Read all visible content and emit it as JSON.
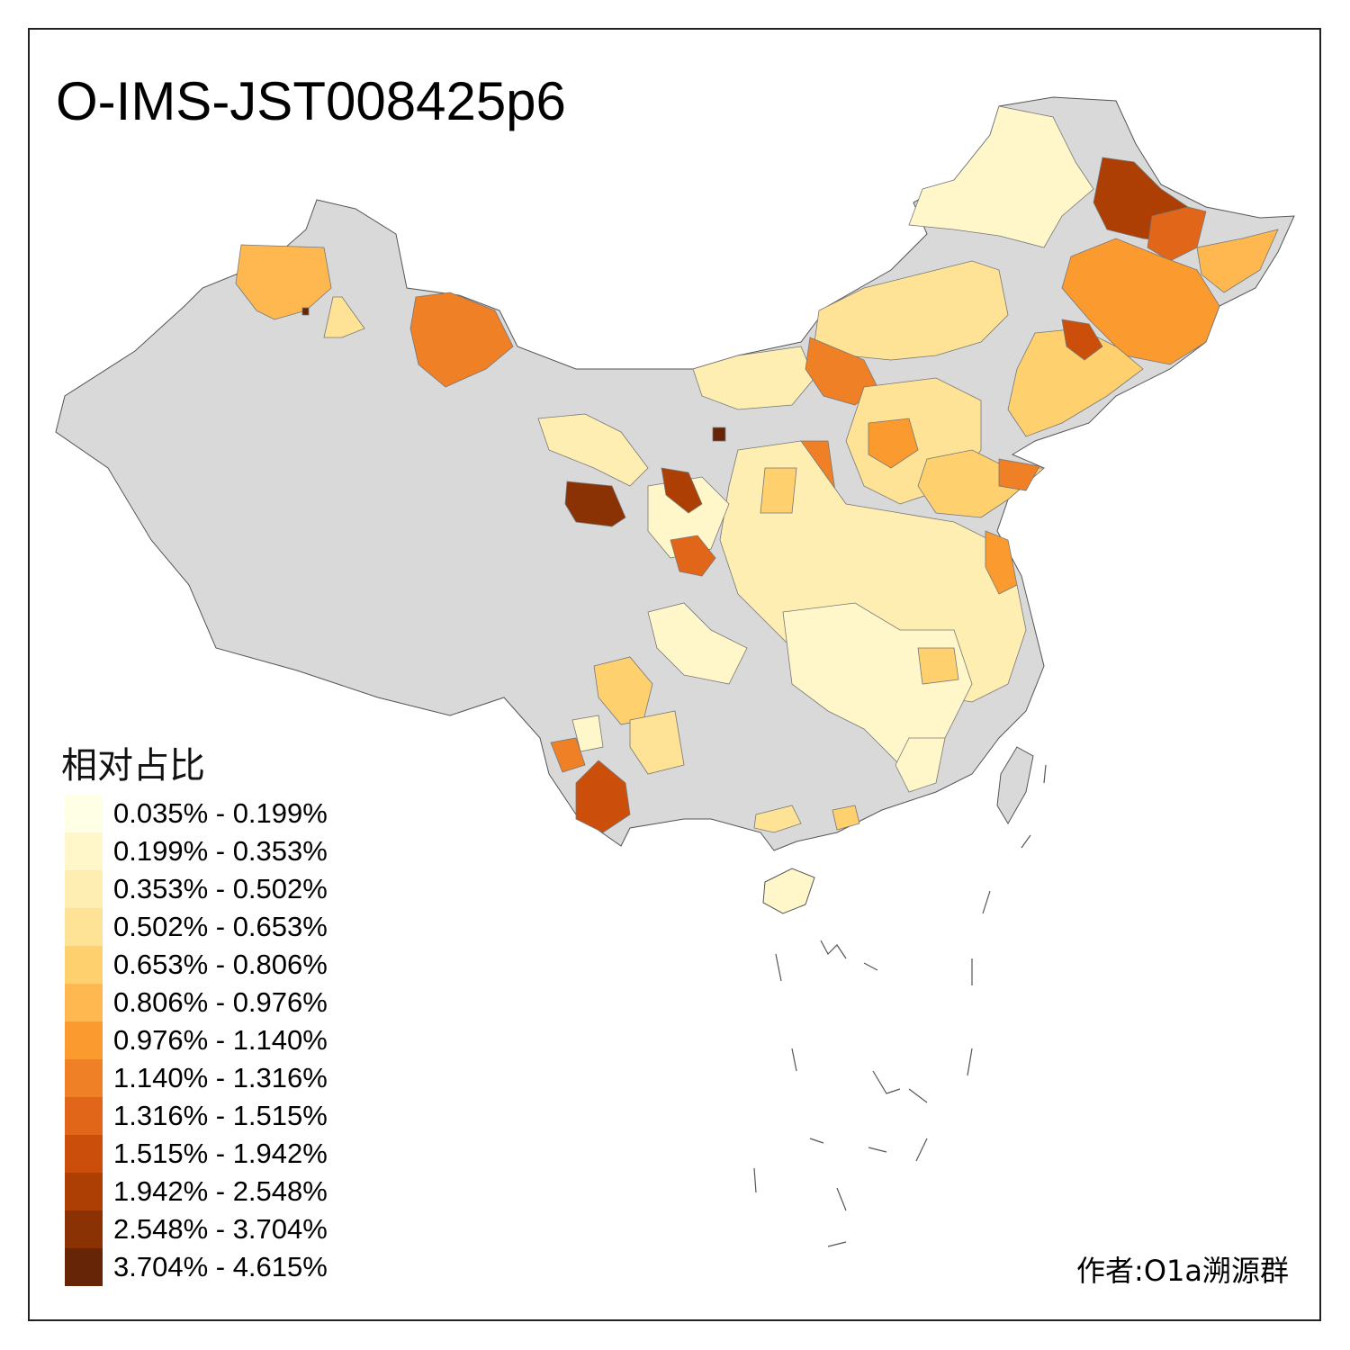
{
  "title": "O-IMS-JST008425p6",
  "legend": {
    "title": "相对占比",
    "items": [
      {
        "label": "0.035% - 0.199%",
        "color": "#FFFFE5"
      },
      {
        "label": "0.199% - 0.353%",
        "color": "#FFF7C9"
      },
      {
        "label": "0.353% - 0.502%",
        "color": "#FEEEB2"
      },
      {
        "label": "0.502% - 0.653%",
        "color": "#FEE295"
      },
      {
        "label": "0.653% - 0.806%",
        "color": "#FED06E"
      },
      {
        "label": "0.806% - 0.976%",
        "color": "#FEB84F"
      },
      {
        "label": "0.976% - 1.140%",
        "color": "#FB9A2F"
      },
      {
        "label": "1.140% - 1.316%",
        "color": "#F08025"
      },
      {
        "label": "1.316% - 1.515%",
        "color": "#E2661A"
      },
      {
        "label": "1.515% - 1.942%",
        "color": "#CB4F0B"
      },
      {
        "label": "1.942% - 2.548%",
        "color": "#AD3F05"
      },
      {
        "label": "2.548% - 3.704%",
        "color": "#8A3204"
      },
      {
        "label": "3.704% - 4.615%",
        "color": "#662506"
      }
    ]
  },
  "no_data_color": "#D9D9D9",
  "author": "作者:O1a溯源群"
}
